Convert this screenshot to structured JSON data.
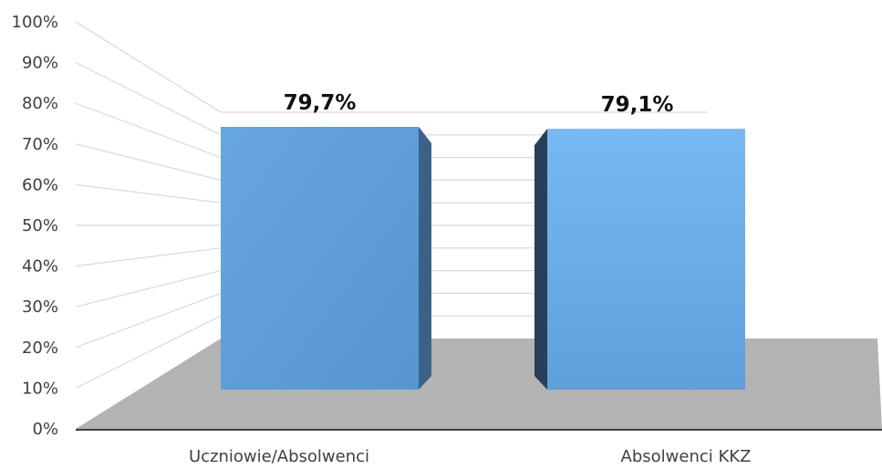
{
  "chart_data": {
    "type": "bar",
    "categories": [
      "Uczniowie/Absolwenci",
      "Absolwenci KKZ"
    ],
    "values": [
      79.7,
      79.1
    ],
    "data_labels": [
      "79,7%",
      "79,1%"
    ],
    "y_ticks": [
      "0%",
      "10%",
      "20%",
      "30%",
      "40%",
      "50%",
      "60%",
      "70%",
      "80%",
      "90%",
      "100%"
    ],
    "ylim": [
      0,
      100
    ],
    "grid": true,
    "style": "3d",
    "colors": {
      "bar_1": "#5b9bd5",
      "bar_2": "#6eb2ec",
      "floor": "#b3b3b3",
      "grid": "#d9d9d9"
    }
  }
}
